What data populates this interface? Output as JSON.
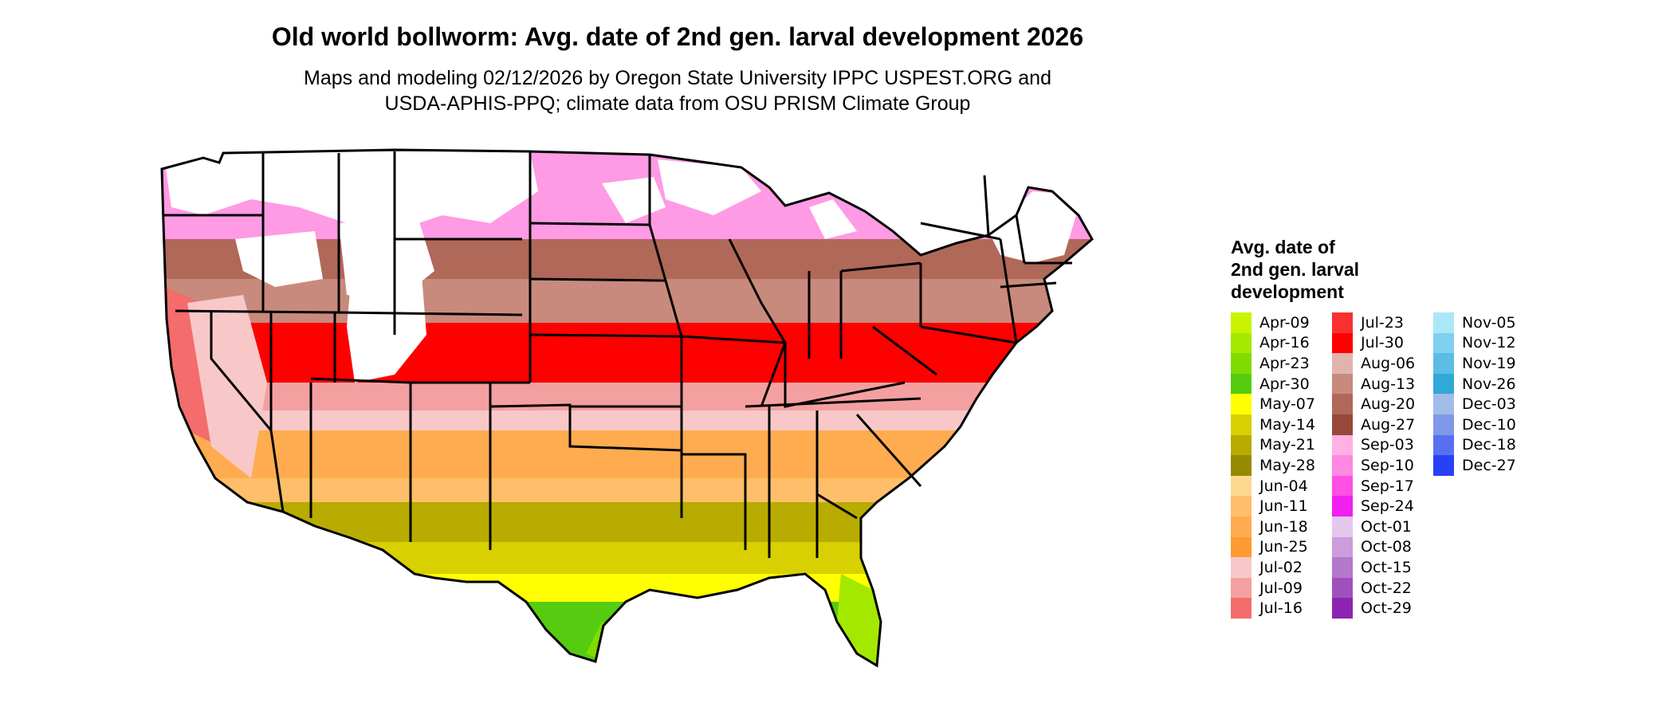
{
  "title": "Old world bollworm: Avg. date of 2nd gen. larval development 2026",
  "subtitle_lines": [
    "Maps and modeling 02/12/2026 by Oregon State University IPPC USPEST.ORG and",
    "USDA-APHIS-PPQ; climate data from OSU PRISM Climate Group"
  ],
  "legend": {
    "title_lines": [
      "Avg. date of",
      "2nd gen. larval",
      "development"
    ],
    "columns": [
      [
        {
          "label": "Apr-09",
          "color": "#c8f400"
        },
        {
          "label": "Apr-16",
          "color": "#a4e800"
        },
        {
          "label": "Apr-23",
          "color": "#80dc00"
        },
        {
          "label": "Apr-30",
          "color": "#56cc10"
        },
        {
          "label": "May-07",
          "color": "#ffff00"
        },
        {
          "label": "May-14",
          "color": "#d8d000"
        },
        {
          "label": "May-21",
          "color": "#b8ac00"
        },
        {
          "label": "May-28",
          "color": "#968a00"
        },
        {
          "label": "Jun-04",
          "color": "#ffd890"
        },
        {
          "label": "Jun-11",
          "color": "#ffbe6a"
        },
        {
          "label": "Jun-18",
          "color": "#ffac50"
        },
        {
          "label": "Jun-25",
          "color": "#ff9a30"
        },
        {
          "label": "Jul-02",
          "color": "#f8c8c8"
        },
        {
          "label": "Jul-09",
          "color": "#f4a0a0"
        },
        {
          "label": "Jul-16",
          "color": "#f46c6c"
        }
      ],
      [
        {
          "label": "Jul-23",
          "color": "#f83030"
        },
        {
          "label": "Jul-30",
          "color": "#ff0000"
        },
        {
          "label": "Aug-06",
          "color": "#e0b4ac"
        },
        {
          "label": "Aug-13",
          "color": "#c88a7c"
        },
        {
          "label": "Aug-20",
          "color": "#b06858"
        },
        {
          "label": "Aug-27",
          "color": "#984838"
        },
        {
          "label": "Sep-03",
          "color": "#ffb0e4"
        },
        {
          "label": "Sep-10",
          "color": "#ff88e0"
        },
        {
          "label": "Sep-17",
          "color": "#ff50e4"
        },
        {
          "label": "Sep-24",
          "color": "#f020f0"
        },
        {
          "label": "Oct-01",
          "color": "#e4c8ec"
        },
        {
          "label": "Oct-08",
          "color": "#cc9cdc"
        },
        {
          "label": "Oct-15",
          "color": "#b478cc"
        },
        {
          "label": "Oct-22",
          "color": "#a050bc"
        },
        {
          "label": "Oct-29",
          "color": "#8c24b0"
        }
      ],
      [
        {
          "label": "Nov-05",
          "color": "#aae8f8"
        },
        {
          "label": "Nov-12",
          "color": "#80d0f0"
        },
        {
          "label": "Nov-19",
          "color": "#5cbce4"
        },
        {
          "label": "Nov-26",
          "color": "#30a8d8"
        },
        {
          "label": "Dec-03",
          "color": "#a0bce8"
        },
        {
          "label": "Dec-10",
          "color": "#8098e8"
        },
        {
          "label": "Dec-18",
          "color": "#5870f0"
        },
        {
          "label": "Dec-27",
          "color": "#2840f8"
        }
      ]
    ]
  }
}
